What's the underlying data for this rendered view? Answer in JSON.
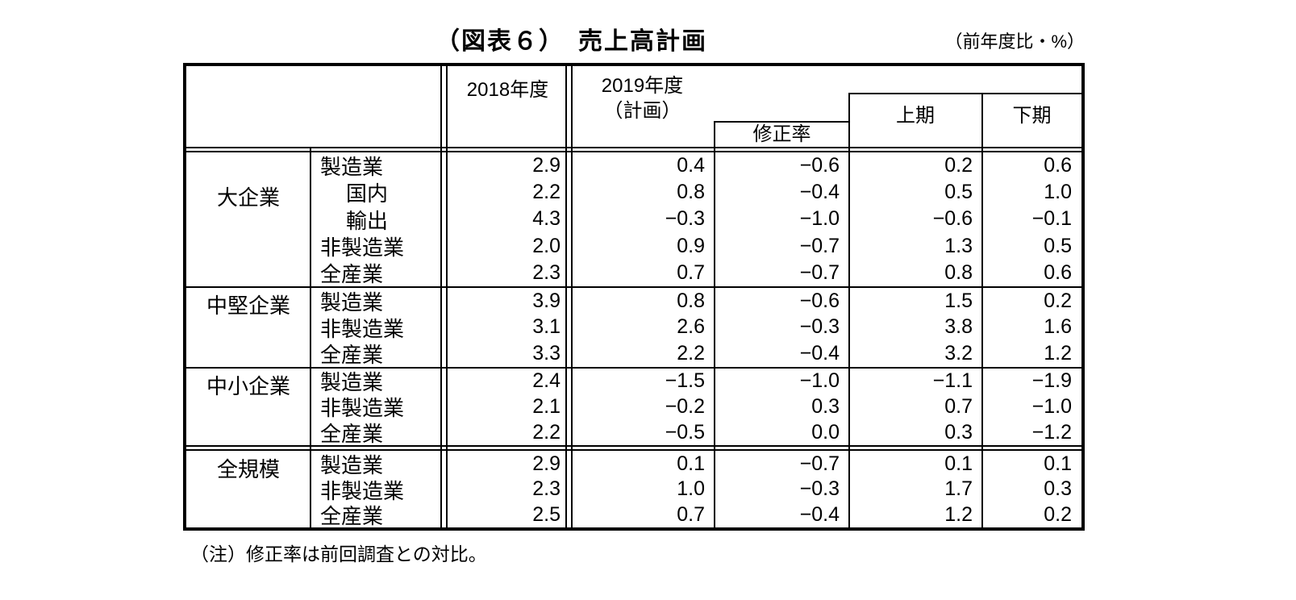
{
  "page": {
    "title": "（図表６）　売上高計画",
    "unit_label": "（前年度比・%）",
    "note": "（注）修正率は前回調査との対比。"
  },
  "table": {
    "header": {
      "col_2018": "2018年度",
      "col_2019_line1": "2019年度",
      "col_2019_line2": "（計画）",
      "col_revision": "修正率",
      "col_first_half": "上期",
      "col_second_half": "下期"
    },
    "groups": [
      {
        "label": "大企業",
        "rows": [
          {
            "sector": "製造業",
            "values": [
              "2.9",
              "0.4",
              "−0.6",
              "0.2",
              "0.6"
            ]
          },
          {
            "sector": "国内",
            "values": [
              "2.2",
              "0.8",
              "−0.4",
              "0.5",
              "1.0"
            ]
          },
          {
            "sector": "輸出",
            "values": [
              "4.3",
              "−0.3",
              "−1.0",
              "−0.6",
              "−0.1"
            ]
          },
          {
            "sector": "非製造業",
            "values": [
              "2.0",
              "0.9",
              "−0.7",
              "1.3",
              "0.5"
            ]
          },
          {
            "sector": "全産業",
            "values": [
              "2.3",
              "0.7",
              "−0.7",
              "0.8",
              "0.6"
            ]
          }
        ]
      },
      {
        "label": "中堅企業",
        "rows": [
          {
            "sector": "製造業",
            "values": [
              "3.9",
              "0.8",
              "−0.6",
              "1.5",
              "0.2"
            ]
          },
          {
            "sector": "非製造業",
            "values": [
              "3.1",
              "2.6",
              "−0.3",
              "3.8",
              "1.6"
            ]
          },
          {
            "sector": "全産業",
            "values": [
              "3.3",
              "2.2",
              "−0.4",
              "3.2",
              "1.2"
            ]
          }
        ]
      },
      {
        "label": "中小企業",
        "rows": [
          {
            "sector": "製造業",
            "values": [
              "2.4",
              "−1.5",
              "−1.0",
              "−1.1",
              "−1.9"
            ]
          },
          {
            "sector": "非製造業",
            "values": [
              "2.1",
              "−0.2",
              "0.3",
              "0.7",
              "−1.0"
            ]
          },
          {
            "sector": "全産業",
            "values": [
              "2.2",
              "−0.5",
              "0.0",
              "0.3",
              "−1.2"
            ]
          }
        ]
      },
      {
        "label": "全規模",
        "rows": [
          {
            "sector": "製造業",
            "values": [
              "2.9",
              "0.1",
              "−0.7",
              "0.1",
              "0.1"
            ]
          },
          {
            "sector": "非製造業",
            "values": [
              "2.3",
              "1.0",
              "−0.3",
              "1.7",
              "0.3"
            ]
          },
          {
            "sector": "全産業",
            "values": [
              "2.5",
              "0.7",
              "−0.4",
              "1.2",
              "0.2"
            ]
          }
        ]
      }
    ]
  }
}
